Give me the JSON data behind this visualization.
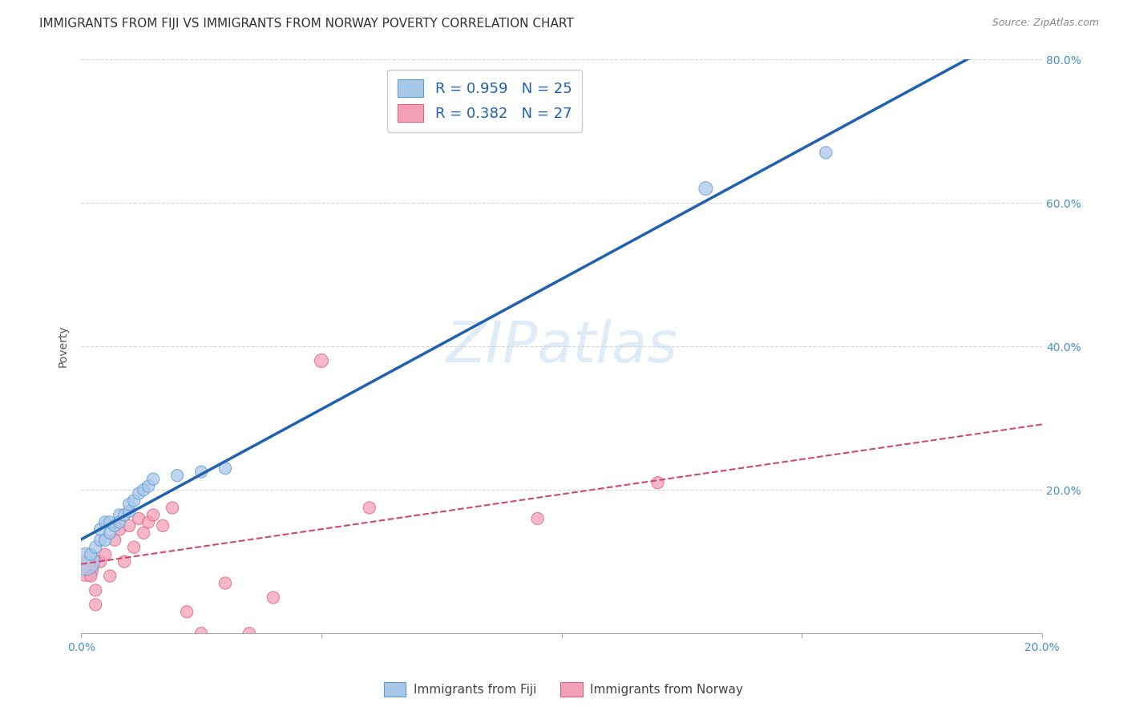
{
  "title": "IMMIGRANTS FROM FIJI VS IMMIGRANTS FROM NORWAY POVERTY CORRELATION CHART",
  "source": "Source: ZipAtlas.com",
  "ylabel": "Poverty",
  "xlim": [
    0.0,
    0.2
  ],
  "ylim": [
    0.0,
    0.8
  ],
  "fiji_color": "#a8c8e8",
  "fiji_edge_color": "#5b9bd5",
  "norway_color": "#f4a0b8",
  "norway_edge_color": "#e06080",
  "fiji_R": 0.959,
  "fiji_N": 25,
  "norway_R": 0.382,
  "norway_N": 27,
  "fiji_line_color": "#2060b0",
  "norway_line_color": "#d04870",
  "watermark_text": "ZIPatlas",
  "legend_label_fiji": "Immigrants from Fiji",
  "legend_label_norway": "Immigrants from Norway",
  "fiji_scatter_x": [
    0.001,
    0.002,
    0.003,
    0.004,
    0.004,
    0.005,
    0.005,
    0.006,
    0.006,
    0.007,
    0.008,
    0.008,
    0.009,
    0.01,
    0.01,
    0.011,
    0.012,
    0.013,
    0.014,
    0.015,
    0.02,
    0.025,
    0.03,
    0.13,
    0.155
  ],
  "fiji_scatter_y": [
    0.1,
    0.11,
    0.12,
    0.13,
    0.145,
    0.13,
    0.155,
    0.14,
    0.155,
    0.15,
    0.165,
    0.155,
    0.165,
    0.17,
    0.18,
    0.185,
    0.195,
    0.2,
    0.205,
    0.215,
    0.22,
    0.225,
    0.23,
    0.62,
    0.67
  ],
  "fiji_marker_sizes": [
    600,
    120,
    120,
    120,
    120,
    120,
    120,
    120,
    120,
    120,
    120,
    120,
    120,
    120,
    120,
    120,
    120,
    120,
    120,
    120,
    120,
    120,
    120,
    150,
    120
  ],
  "norway_scatter_x": [
    0.001,
    0.002,
    0.003,
    0.003,
    0.004,
    0.005,
    0.006,
    0.007,
    0.008,
    0.009,
    0.01,
    0.011,
    0.012,
    0.013,
    0.014,
    0.015,
    0.017,
    0.019,
    0.022,
    0.025,
    0.03,
    0.035,
    0.04,
    0.05,
    0.06,
    0.095,
    0.12
  ],
  "norway_scatter_y": [
    0.09,
    0.08,
    0.06,
    0.04,
    0.1,
    0.11,
    0.08,
    0.13,
    0.145,
    0.1,
    0.15,
    0.12,
    0.16,
    0.14,
    0.155,
    0.165,
    0.15,
    0.175,
    0.03,
    0.0,
    0.07,
    0.0,
    0.05,
    0.38,
    0.175,
    0.16,
    0.21
  ],
  "norway_marker_sizes": [
    500,
    120,
    120,
    120,
    120,
    120,
    120,
    120,
    120,
    120,
    120,
    120,
    120,
    120,
    120,
    120,
    120,
    120,
    120,
    120,
    120,
    120,
    120,
    150,
    120,
    120,
    120
  ],
  "background_color": "#ffffff",
  "grid_color": "#cccccc",
  "title_fontsize": 11,
  "axis_label_fontsize": 10,
  "tick_fontsize": 10,
  "legend_fontsize": 13,
  "source_fontsize": 9,
  "right_ytick_color": "#4a90c8",
  "tick_label_color": "#4a90c8"
}
